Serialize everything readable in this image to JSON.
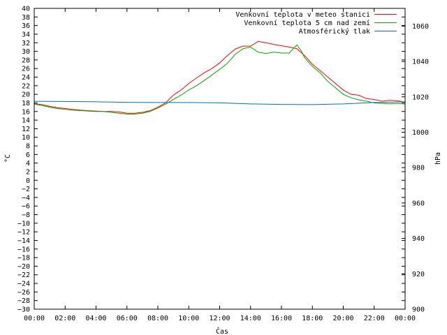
{
  "chart_data": {
    "type": "line",
    "xlabel": "Čas",
    "ylabel": "°C",
    "y2label": "hPa",
    "x_ticks": [
      "00:00",
      "02:00",
      "04:00",
      "06:00",
      "08:00",
      "10:00",
      "12:00",
      "14:00",
      "16:00",
      "18:00",
      "20:00",
      "22:00",
      "00:00"
    ],
    "xlim": [
      0,
      24
    ],
    "ylim": [
      -30,
      40
    ],
    "y_ticks": [
      40,
      38,
      36,
      34,
      32,
      30,
      28,
      26,
      24,
      22,
      20,
      18,
      16,
      14,
      12,
      10,
      8,
      6,
      4,
      2,
      0,
      -2,
      -4,
      -6,
      -8,
      -10,
      -12,
      -14,
      -16,
      -18,
      -20,
      -22,
      -24,
      -26,
      -28,
      -30
    ],
    "y_tick_labels": [
      "40",
      "38",
      "36",
      "34",
      "32",
      "30",
      "28",
      "26",
      "24",
      "22",
      "20",
      "18",
      "16",
      "14",
      "12",
      "10",
      "8",
      "6",
      "4",
      "2",
      "0",
      "−2",
      "−4",
      "−6",
      "−8",
      "−10",
      "−12",
      "−14",
      "−16",
      "−18",
      "−20",
      "−22",
      "−24",
      "−26",
      "−28",
      "−30"
    ],
    "y2lim": [
      900,
      1070
    ],
    "y2_ticks": [
      1060,
      1040,
      1020,
      1000,
      980,
      960,
      940,
      920,
      900
    ],
    "grid": false,
    "legend_position": "top-right",
    "series": [
      {
        "name": "Venkovní teplota v meteo stanici",
        "color": "#ff0000",
        "axis": "left",
        "x": [
          0,
          0.5,
          1,
          1.5,
          2,
          2.5,
          3,
          3.5,
          4,
          4.5,
          5,
          5.5,
          6,
          6.5,
          7,
          7.5,
          8,
          8.5,
          9,
          9.5,
          10,
          10.5,
          11,
          11.5,
          12,
          12.5,
          13,
          13.5,
          14,
          14.5,
          15,
          15.5,
          16,
          16.5,
          17,
          17.5,
          18,
          18.5,
          19,
          19.5,
          20,
          20.5,
          21,
          21.5,
          22,
          22.5,
          23,
          23.5,
          24
        ],
        "y": [
          17.8,
          17.6,
          17.2,
          16.9,
          16.7,
          16.5,
          16.3,
          16.2,
          16.1,
          16.0,
          16.0,
          15.9,
          15.6,
          15.6,
          15.8,
          16.2,
          17.0,
          18.0,
          19.8,
          21.0,
          22.5,
          23.8,
          25.0,
          26.0,
          27.3,
          29.0,
          30.5,
          31.2,
          31.2,
          32.3,
          32.0,
          31.6,
          31.3,
          31.0,
          30.6,
          29.0,
          27.0,
          25.5,
          24.0,
          22.5,
          21.0,
          20.0,
          19.8,
          19.0,
          18.8,
          18.4,
          18.6,
          18.5,
          18.2
        ]
      },
      {
        "name": "Venkovní teplota 5 cm nad zemí",
        "color": "#00aa00",
        "axis": "left",
        "x": [
          0,
          0.5,
          1,
          1.5,
          2,
          2.5,
          3,
          3.5,
          4,
          4.5,
          5,
          5.5,
          6,
          6.5,
          7,
          7.5,
          8,
          8.5,
          9,
          9.5,
          10,
          10.5,
          11,
          11.5,
          12,
          12.5,
          13,
          13.5,
          14,
          14.5,
          15,
          15.5,
          16,
          16.5,
          17,
          17.3,
          17.5,
          18,
          18.5,
          19,
          19.5,
          20,
          20.5,
          21,
          21.5,
          22,
          22.5,
          23,
          23.5,
          24
        ],
        "y": [
          17.7,
          17.4,
          17.0,
          16.7,
          16.5,
          16.3,
          16.2,
          16.1,
          16.0,
          16.0,
          15.8,
          15.6,
          15.4,
          15.4,
          15.6,
          16.0,
          16.8,
          17.7,
          18.8,
          19.8,
          21.0,
          22.0,
          23.2,
          24.5,
          25.8,
          27.2,
          29.3,
          30.6,
          31.0,
          29.8,
          29.5,
          29.8,
          29.6,
          29.6,
          31.5,
          30.0,
          28.5,
          26.5,
          25.0,
          23.0,
          21.5,
          20.0,
          19.2,
          18.7,
          18.4,
          18.0,
          17.9,
          17.8,
          17.9,
          17.7
        ]
      },
      {
        "name": "Atmosférický tlak",
        "color": "#0070c0",
        "axis": "right",
        "x": [
          0,
          2,
          4,
          6,
          8,
          10,
          12,
          14,
          16,
          18,
          20,
          22,
          24
        ],
        "y": [
          1017.5,
          1017.4,
          1017.2,
          1016.9,
          1016.8,
          1016.8,
          1016.6,
          1016.0,
          1015.7,
          1015.6,
          1016.0,
          1016.8,
          1017.2
        ]
      }
    ]
  }
}
